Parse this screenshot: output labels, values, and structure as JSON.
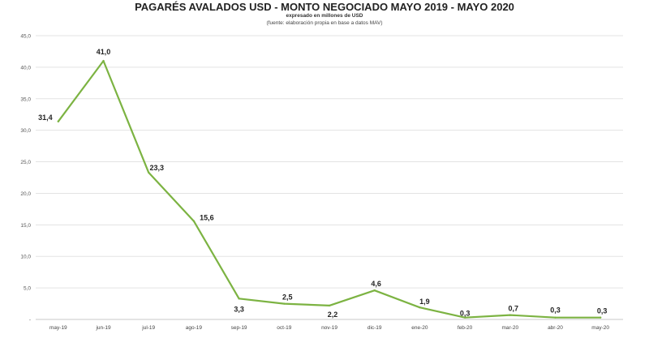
{
  "chart_data": {
    "type": "line",
    "title": "PAGARÉS AVALADOS USD - MONTO NEGOCIADO MAYO 2019 - MAYO 2020",
    "subtitle": "expresado en millones de USD",
    "source": "(fuente: elaboración propia en base a datos MAV)",
    "categories": [
      "may-19",
      "jun-19",
      "jul-19",
      "ago-19",
      "sep-19",
      "oct-19",
      "nov-19",
      "dic-19",
      "ene-20",
      "feb-20",
      "mar-20",
      "abr-20",
      "may-20"
    ],
    "series": [
      {
        "values": [
          31.4,
          41.0,
          23.3,
          15.6,
          3.3,
          2.5,
          2.2,
          4.6,
          1.9,
          0.3,
          0.7,
          0.3,
          0.3
        ]
      }
    ],
    "data_labels": [
      "31,4",
      "41,0",
      "23,3",
      "15,6",
      "3,3",
      "2,5",
      "2,2",
      "4,6",
      "1,9",
      "0,3",
      "0,7",
      "0,3",
      "0,3"
    ],
    "y_ticks": [
      {
        "value": 0,
        "label": "-"
      },
      {
        "value": 5,
        "label": "5,0"
      },
      {
        "value": 10,
        "label": "10,0"
      },
      {
        "value": 15,
        "label": "15,0"
      },
      {
        "value": 20,
        "label": "20,0"
      },
      {
        "value": 25,
        "label": "25,0"
      },
      {
        "value": 30,
        "label": "30,0"
      },
      {
        "value": 35,
        "label": "35,0"
      },
      {
        "value": 40,
        "label": "40,0"
      },
      {
        "value": 45,
        "label": "45,0"
      }
    ],
    "ylim": [
      0,
      45
    ],
    "grid": true,
    "line_color": "#7cb342",
    "xlabel": "",
    "ylabel": ""
  }
}
